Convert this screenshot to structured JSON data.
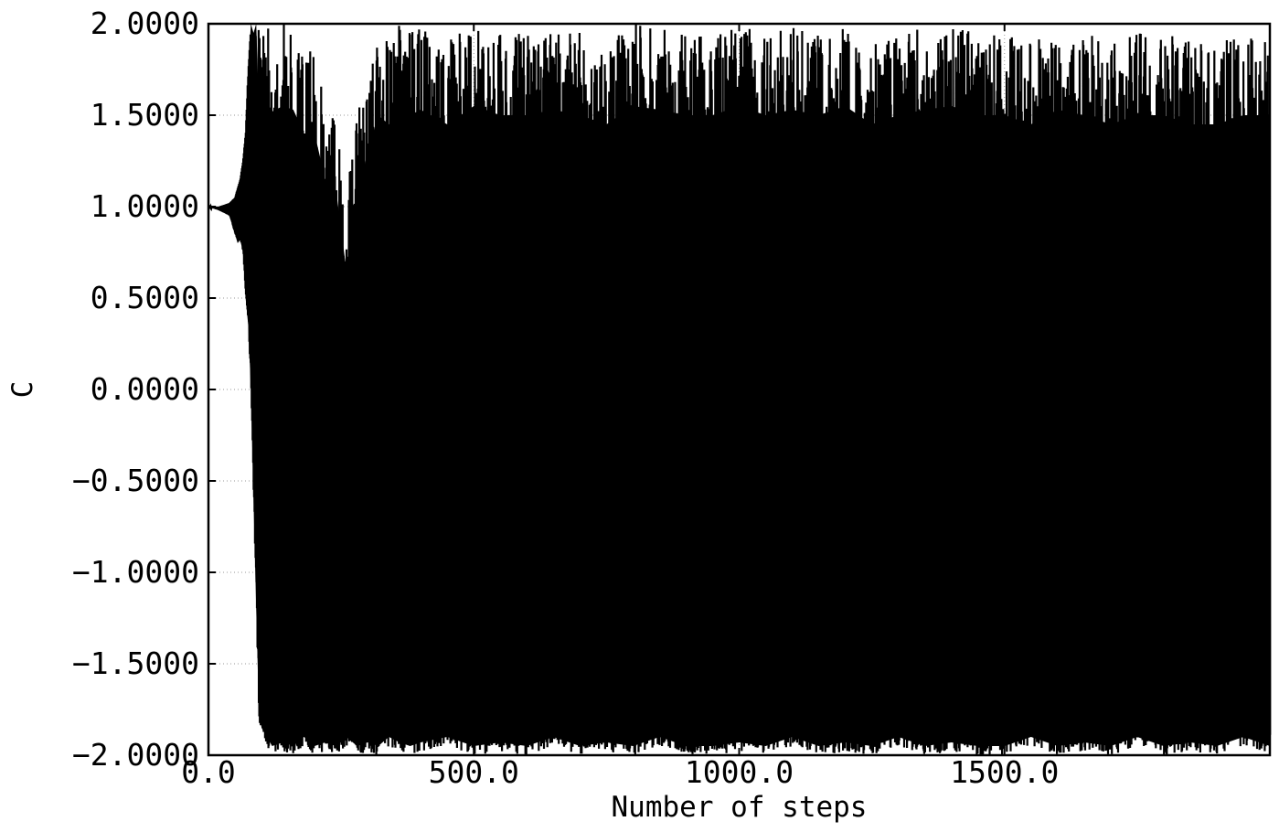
{
  "chart_data": {
    "type": "line",
    "title": "",
    "xlabel": "Number of steps",
    "ylabel": "C",
    "xlim": [
      0,
      2000
    ],
    "ylim": [
      -2,
      2
    ],
    "x_ticks": [
      {
        "value": 0,
        "label": "0.0"
      },
      {
        "value": 500,
        "label": "500.0"
      },
      {
        "value": 1000,
        "label": "1000.0"
      },
      {
        "value": 1500,
        "label": "1500.0"
      }
    ],
    "y_ticks": [
      {
        "value": 2.0,
        "label": "2.0000"
      },
      {
        "value": 1.5,
        "label": "1.5000"
      },
      {
        "value": 1.0,
        "label": "1.0000"
      },
      {
        "value": 0.5,
        "label": "0.5000"
      },
      {
        "value": 0.0,
        "label": "0.0000"
      },
      {
        "value": -0.5,
        "label": "−0.5000"
      },
      {
        "value": -1.0,
        "label": "−1.0000"
      },
      {
        "value": -1.5,
        "label": "−1.5000"
      },
      {
        "value": -2.0,
        "label": "−2.0000"
      }
    ],
    "grid": true,
    "series_color": "#000000",
    "series": [
      {
        "x": [
          0,
          20,
          40,
          50,
          55,
          60,
          65,
          70,
          75,
          80,
          85,
          90,
          95,
          100,
          110,
          120,
          140,
          160,
          180,
          200,
          220,
          240,
          260,
          280,
          300,
          320,
          340,
          360,
          380,
          400,
          450,
          500,
          550,
          600,
          650,
          700,
          750,
          800,
          850,
          900,
          950,
          1000,
          1050,
          1100,
          1150,
          1200,
          1250,
          1300,
          1350,
          1400,
          1450,
          1500,
          1550,
          1600,
          1650,
          1700,
          1750,
          1800,
          1850,
          1900,
          1950,
          2000
        ],
        "y_upper": [
          1.0,
          1.0,
          1.02,
          1.05,
          1.1,
          1.15,
          1.25,
          1.4,
          1.75,
          2.0,
          1.95,
          2.0,
          2.0,
          2.0,
          1.98,
          1.97,
          2.0,
          1.98,
          1.85,
          1.85,
          1.6,
          1.55,
          1.1,
          1.5,
          1.75,
          1.95,
          1.9,
          2.0,
          1.95,
          1.98,
          1.9,
          2.0,
          1.95,
          1.95,
          1.98,
          1.95,
          1.9,
          2.0,
          1.98,
          1.95,
          1.95,
          2.0,
          1.95,
          1.98,
          1.95,
          2.0,
          1.9,
          1.95,
          1.98,
          2.0,
          1.95,
          1.95,
          1.9,
          1.98,
          1.95,
          1.9,
          1.95,
          1.95,
          1.9,
          1.9,
          1.95,
          1.95
        ],
        "y_lower": [
          1.0,
          0.98,
          0.95,
          0.85,
          0.8,
          0.82,
          0.75,
          0.5,
          0.35,
          0.0,
          -0.6,
          -1.2,
          -1.8,
          -1.9,
          -1.95,
          -2.0,
          -1.98,
          -2.0,
          -1.95,
          -2.0,
          -1.98,
          -2.0,
          -1.95,
          -2.0,
          -1.98,
          -2.0,
          -1.95,
          -1.98,
          -2.0,
          -1.98,
          -1.95,
          -2.0,
          -1.98,
          -2.0,
          -1.95,
          -2.0,
          -1.98,
          -2.0,
          -1.95,
          -2.0,
          -2.0,
          -1.98,
          -2.0,
          -1.95,
          -2.0,
          -1.98,
          -2.0,
          -1.95,
          -2.0,
          -1.98,
          -2.0,
          -2.0,
          -1.95,
          -2.0,
          -1.98,
          -2.0,
          -1.95,
          -2.0,
          -1.98,
          -2.0,
          -1.95,
          -2.0
        ]
      }
    ]
  }
}
